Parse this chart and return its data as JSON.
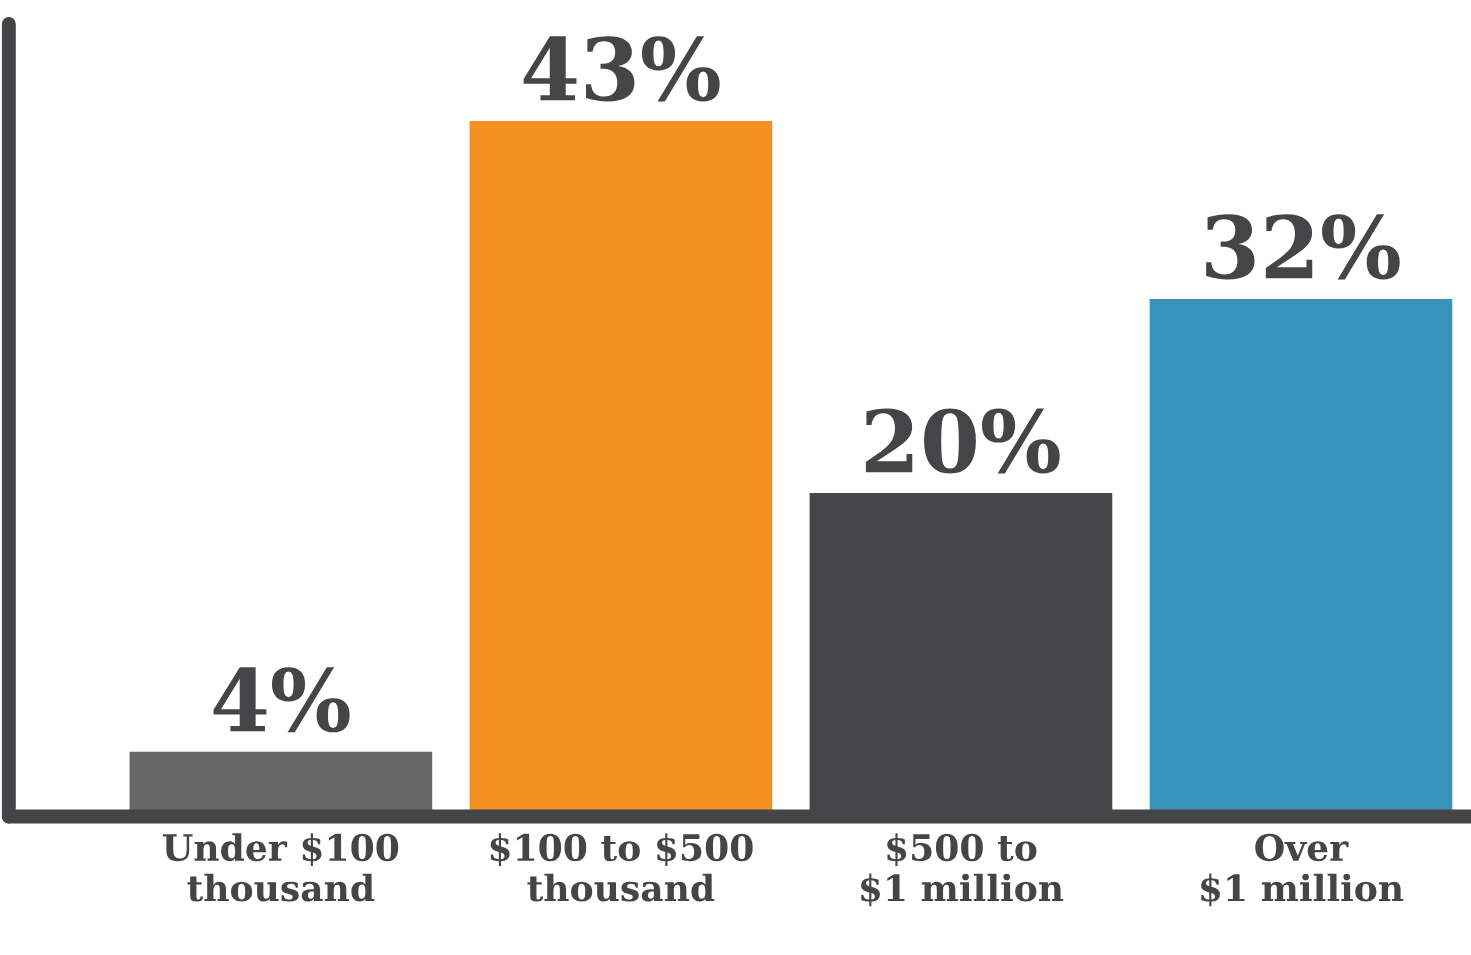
{
  "chart_data": {
    "type": "bar",
    "categories": [
      "Under $100\nthousand",
      "$100 to $500\nthousand",
      "$500 to\n$1 million",
      "Over\n$1 million"
    ],
    "values": [
      4,
      43,
      20,
      32
    ],
    "colors": [
      "#666766",
      "#f39020",
      "#454547",
      "#3a93bb"
    ],
    "value_labels": [
      "4%",
      "43%",
      "20%",
      "32%"
    ],
    "ylim": [
      0,
      49
    ],
    "tick_labels": "x",
    "grid": false,
    "legend": false
  }
}
